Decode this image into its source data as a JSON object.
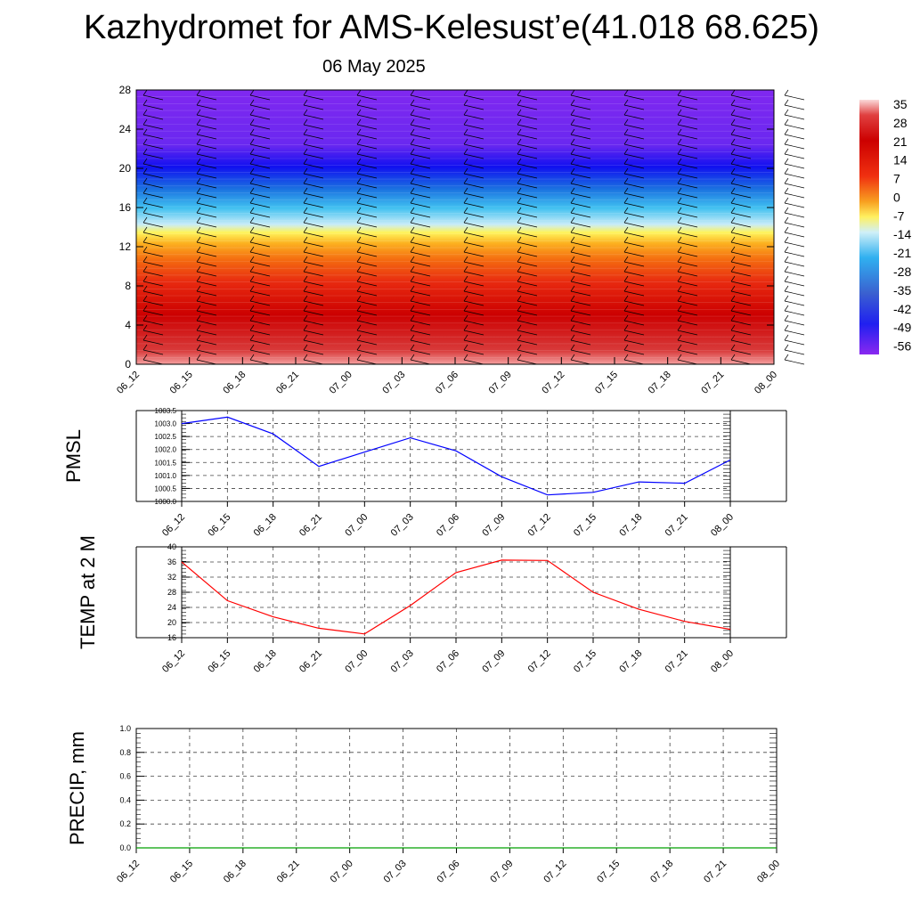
{
  "title": "Kazhydromet for AMS-Kelesust’e(41.018 68.625)",
  "date": "06 May 2025",
  "time_labels": [
    "06_12",
    "06_15",
    "06_18",
    "06_21",
    "07_00",
    "07_03",
    "07_06",
    "07_09",
    "07_12",
    "07_15",
    "07_18",
    "07_21",
    "08_00"
  ],
  "colors": {
    "pmsl": "#0000ff",
    "temp": "#ff0000",
    "precip": "#00a000"
  },
  "chart_data": [
    {
      "type": "heatmap",
      "name": "cross-section",
      "title": "",
      "x": [
        "06_12",
        "06_15",
        "06_18",
        "06_21",
        "07_00",
        "07_03",
        "07_06",
        "07_09",
        "07_12",
        "07_15",
        "07_18",
        "07_21",
        "08_00"
      ],
      "ylim": [
        0,
        28
      ],
      "yticks": [
        0,
        4,
        8,
        12,
        16,
        20,
        24,
        28
      ],
      "colorbar_labels": [
        "35",
        "28",
        "21",
        "14",
        "7",
        "0",
        "-7",
        "-14",
        "-21",
        "-28",
        "-35",
        "-42",
        "-49",
        "-56"
      ],
      "colorbar_range": [
        -56,
        35
      ]
    },
    {
      "type": "line",
      "name": "PMSL",
      "ylabel": "PMSL",
      "x": [
        "06_12",
        "06_15",
        "06_18",
        "06_21",
        "07_00",
        "07_03",
        "07_06",
        "07_09",
        "07_12",
        "07_15",
        "07_18",
        "07_21",
        "08_00"
      ],
      "values": [
        1003.0,
        1003.25,
        1002.6,
        1001.35,
        1001.9,
        1002.45,
        1001.95,
        1000.95,
        1000.25,
        1000.35,
        1000.75,
        1000.7,
        1001.6
      ],
      "ylim": [
        1000.0,
        1003.5
      ],
      "yticks": [
        "1000.0",
        "1000.5",
        "1001.0",
        "1001.5",
        "1002.0",
        "1002.5",
        "1003.0",
        "1003.5"
      ]
    },
    {
      "type": "line",
      "name": "TEMP at 2 M",
      "ylabel": "TEMP at 2 M",
      "x": [
        "06_12",
        "06_15",
        "06_18",
        "06_21",
        "07_00",
        "07_03",
        "07_06",
        "07_09",
        "07_12",
        "07_15",
        "07_18",
        "07_21",
        "08_00"
      ],
      "values": [
        36.0,
        25.8,
        21.5,
        18.5,
        17.0,
        24.5,
        33.2,
        36.5,
        36.4,
        28.0,
        23.5,
        20.3,
        18.2
      ],
      "ylim": [
        16,
        40
      ],
      "yticks": [
        "16",
        "20",
        "24",
        "28",
        "32",
        "36",
        "40"
      ]
    },
    {
      "type": "line",
      "name": "PRECIP",
      "ylabel": "PRECIP, mm",
      "x": [
        "06_12",
        "06_15",
        "06_18",
        "06_21",
        "07_00",
        "07_03",
        "07_06",
        "07_09",
        "07_12",
        "07_15",
        "07_18",
        "07_21",
        "08_00"
      ],
      "values": [
        0,
        0,
        0,
        0,
        0,
        0,
        0,
        0,
        0,
        0,
        0,
        0,
        0
      ],
      "ylim": [
        0.0,
        1.0
      ],
      "yticks": [
        "0.0",
        "0.2",
        "0.4",
        "0.6",
        "0.8",
        "1.0"
      ]
    }
  ]
}
